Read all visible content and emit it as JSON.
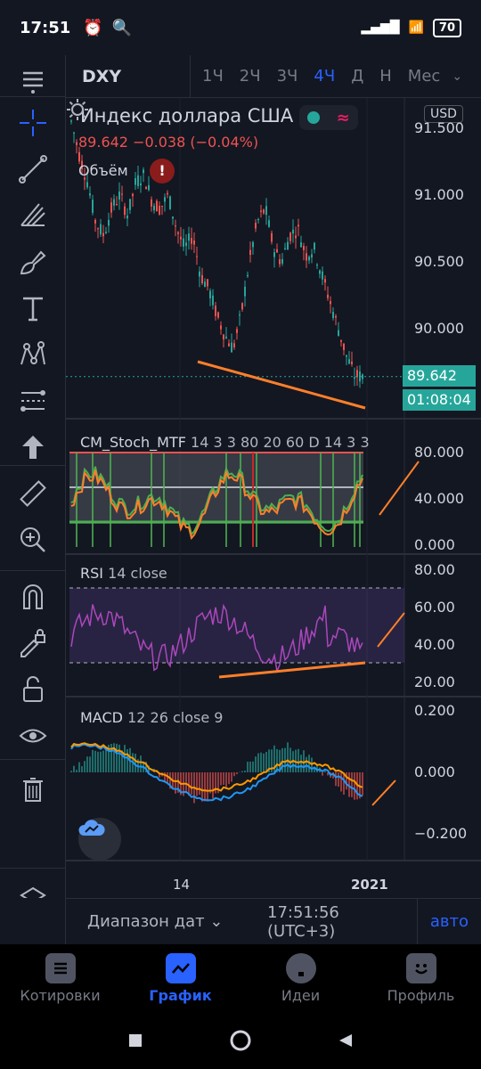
{
  "status_bar": {
    "time": "17:51",
    "battery": "70"
  },
  "top_bar": {
    "symbol": "DXY",
    "timeframes": [
      "1Ч",
      "2Ч",
      "3Ч",
      "4Ч",
      "Д",
      "Н",
      "Мес"
    ],
    "active_timeframe": "4Ч"
  },
  "left_toolbar": {
    "tools": [
      "crosshair-icon",
      "trend-line-icon",
      "fib-icon",
      "brush-icon",
      "text-icon",
      "pattern-icon",
      "prediction-icon",
      "arrow-up-icon",
      "ruler-icon",
      "zoom-in-icon",
      "magnet-icon",
      "lock-drawing-icon",
      "unlock-icon",
      "eye-icon",
      "trash-icon",
      "layers-icon"
    ]
  },
  "main_pane": {
    "title": "Индекс доллара США",
    "currency": "USD",
    "ohlc_text": "89.642  −0.038 (−0.04%)",
    "volume_label": "Объём",
    "warning": "!",
    "axis": [
      "91.500",
      "91.000",
      "90.500",
      "90.000"
    ],
    "last_price": "89.642",
    "countdown": "01:08:04"
  },
  "stoch_pane": {
    "label": "CM_Stoch_MTF",
    "params": "14 3 3 80 20 60 D 14 3 3",
    "axis": [
      "80.000",
      "40.000",
      "0.000"
    ]
  },
  "rsi_pane": {
    "label": "RSI",
    "params": "14 close",
    "axis": [
      "80.00",
      "60.00",
      "40.00",
      "20.00"
    ]
  },
  "macd_pane": {
    "label": "MACD",
    "params": "12 26 close 9",
    "axis": [
      "0.200",
      "0.000",
      "−0.200"
    ]
  },
  "time_axis": {
    "labels": [
      "14",
      "2021"
    ]
  },
  "range_bar": {
    "range_label": "Диапазон дат",
    "clock": "17:51:56 (UTC+3)",
    "auto": "авто"
  },
  "bottom_nav": {
    "items": [
      "Котировки",
      "График",
      "Идеи",
      "Профиль"
    ],
    "active": "График"
  },
  "colors": {
    "background": "#131722",
    "accent": "#2962ff",
    "up": "#26a69a",
    "down": "#ef5350",
    "annotation": "#ff7f2a"
  }
}
